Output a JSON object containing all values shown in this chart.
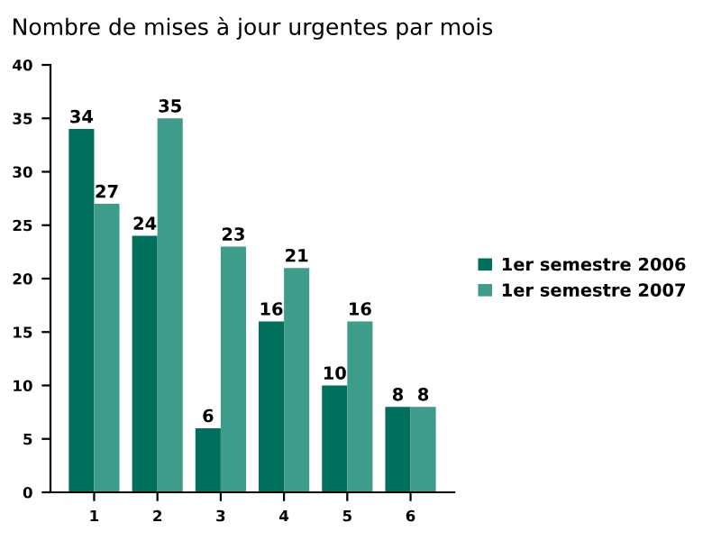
{
  "chart_data": {
    "type": "bar",
    "title": "Nombre de mises à jour urgentes par mois",
    "categories": [
      "1",
      "2",
      "3",
      "4",
      "5",
      "6"
    ],
    "series": [
      {
        "name": "1er semestre 2006",
        "color": "#00705c",
        "values": [
          34,
          24,
          6,
          16,
          10,
          8
        ]
      },
      {
        "name": "1er semestre 2007",
        "color": "#3e9c8a",
        "values": [
          27,
          35,
          23,
          21,
          16,
          8
        ]
      }
    ],
    "ylim": [
      0,
      40
    ],
    "yticks": [
      0,
      5,
      10,
      15,
      20,
      25,
      30,
      35,
      40
    ],
    "grid": false,
    "legend": "right",
    "data_labels": true
  }
}
